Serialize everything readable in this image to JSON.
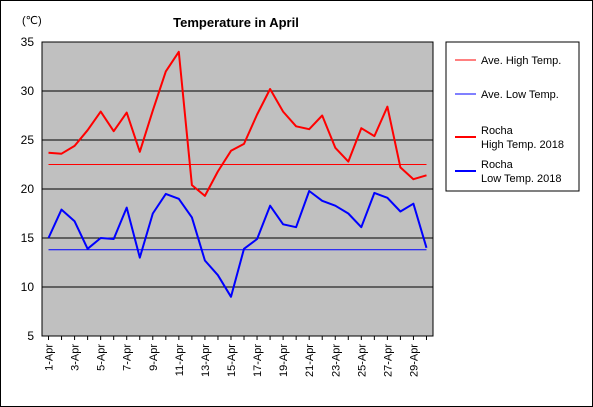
{
  "chart_data": {
    "type": "line",
    "title": "Temperature in April",
    "unit_label": "(℃)",
    "ylim": [
      5,
      35
    ],
    "yticks": [
      5,
      10,
      15,
      20,
      25,
      30,
      35
    ],
    "grid": "horizontal",
    "legend_position": "right",
    "plot_background": "#c0c0c0",
    "categories": [
      "1-Apr",
      "2-Apr",
      "3-Apr",
      "4-Apr",
      "5-Apr",
      "6-Apr",
      "7-Apr",
      "8-Apr",
      "9-Apr",
      "10-Apr",
      "11-Apr",
      "12-Apr",
      "13-Apr",
      "14-Apr",
      "15-Apr",
      "16-Apr",
      "17-Apr",
      "18-Apr",
      "19-Apr",
      "20-Apr",
      "21-Apr",
      "22-Apr",
      "23-Apr",
      "24-Apr",
      "25-Apr",
      "26-Apr",
      "27-Apr",
      "28-Apr",
      "29-Apr",
      "30-Apr"
    ],
    "xtick_labels": [
      "1-Apr",
      "3-Apr",
      "5-Apr",
      "7-Apr",
      "9-Apr",
      "11-Apr",
      "13-Apr",
      "15-Apr",
      "17-Apr",
      "19-Apr",
      "21-Apr",
      "23-Apr",
      "25-Apr",
      "27-Apr",
      "29-Apr"
    ],
    "series": [
      {
        "name": "Ave. High Temp.",
        "legend_lines": [
          "Ave. High Temp."
        ],
        "color": "#ff0000",
        "width": 1,
        "values": [
          22.5,
          22.5,
          22.5,
          22.5,
          22.5,
          22.5,
          22.5,
          22.5,
          22.5,
          22.5,
          22.5,
          22.5,
          22.5,
          22.5,
          22.5,
          22.5,
          22.5,
          22.5,
          22.5,
          22.5,
          22.5,
          22.5,
          22.5,
          22.5,
          22.5,
          22.5,
          22.5,
          22.5,
          22.5,
          22.5
        ]
      },
      {
        "name": "Ave. Low Temp.",
        "legend_lines": [
          "Ave. Low Temp."
        ],
        "color": "#0000ff",
        "width": 1,
        "values": [
          13.8,
          13.8,
          13.8,
          13.8,
          13.8,
          13.8,
          13.8,
          13.8,
          13.8,
          13.8,
          13.8,
          13.8,
          13.8,
          13.8,
          13.8,
          13.8,
          13.8,
          13.8,
          13.8,
          13.8,
          13.8,
          13.8,
          13.8,
          13.8,
          13.8,
          13.8,
          13.8,
          13.8,
          13.8,
          13.8
        ]
      },
      {
        "name": "Rocha High Temp. 2018",
        "legend_lines": [
          "Rocha",
          "High Temp. 2018"
        ],
        "color": "#ff0000",
        "width": 2,
        "values": [
          23.7,
          23.6,
          24.4,
          26.0,
          27.9,
          25.9,
          27.8,
          23.8,
          28.0,
          32.0,
          34.0,
          20.4,
          19.3,
          21.8,
          23.9,
          24.6,
          27.6,
          30.2,
          27.9,
          26.4,
          26.1,
          27.5,
          24.2,
          22.8,
          26.2,
          25.4,
          28.4,
          22.2,
          21.0,
          21.4
        ]
      },
      {
        "name": "Rocha Low Temp. 2018",
        "legend_lines": [
          "Rocha",
          "Low Temp. 2018"
        ],
        "color": "#0000ff",
        "width": 2,
        "values": [
          15.0,
          17.9,
          16.7,
          13.9,
          15.0,
          14.9,
          18.1,
          13.0,
          17.5,
          19.5,
          19.0,
          17.1,
          12.7,
          11.2,
          9.0,
          13.9,
          14.9,
          18.3,
          16.4,
          16.1,
          19.8,
          18.8,
          18.3,
          17.5,
          16.1,
          19.6,
          19.1,
          17.7,
          18.5,
          14.0
        ]
      }
    ]
  }
}
